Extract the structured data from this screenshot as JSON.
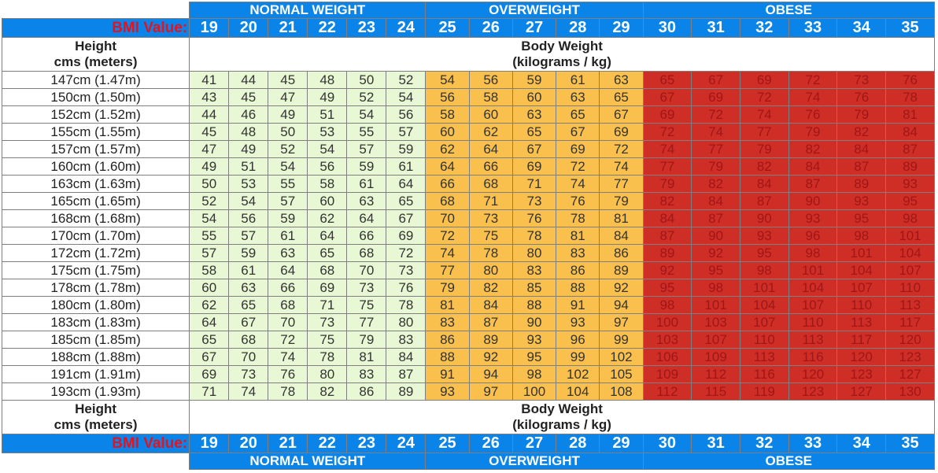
{
  "chart_data": {
    "type": "table",
    "bmi_label": "BMI Value:",
    "height_header": [
      "Height",
      "cms (meters)"
    ],
    "weight_header": [
      "Body Weight",
      "(kilograms / kg)"
    ],
    "categories": [
      {
        "name": "NORMAL WEIGHT",
        "bmi": [
          19,
          20,
          21,
          22,
          23,
          24
        ],
        "color": "#e8f8d4"
      },
      {
        "name": "OVERWEIGHT",
        "bmi": [
          25,
          26,
          27,
          28,
          29
        ],
        "color": "#f9c04e"
      },
      {
        "name": "OBESE",
        "bmi": [
          30,
          31,
          32,
          33,
          34,
          35
        ],
        "color": "#cf2e27"
      }
    ],
    "bmi_values": [
      19,
      20,
      21,
      22,
      23,
      24,
      25,
      26,
      27,
      28,
      29,
      30,
      31,
      32,
      33,
      34,
      35
    ],
    "rows": [
      {
        "height": "147cm (1.47m)",
        "weights": [
          41,
          44,
          45,
          48,
          50,
          52,
          54,
          56,
          59,
          61,
          63,
          65,
          67,
          69,
          72,
          73,
          76
        ]
      },
      {
        "height": "150cm (1.50m)",
        "weights": [
          43,
          45,
          47,
          49,
          52,
          54,
          56,
          58,
          60,
          63,
          65,
          67,
          69,
          72,
          74,
          76,
          78
        ]
      },
      {
        "height": "152cm (1.52m)",
        "weights": [
          44,
          46,
          49,
          51,
          54,
          56,
          58,
          60,
          63,
          65,
          67,
          69,
          72,
          74,
          76,
          79,
          81
        ]
      },
      {
        "height": "155cm (1.55m)",
        "weights": [
          45,
          48,
          50,
          53,
          55,
          57,
          60,
          62,
          65,
          67,
          69,
          72,
          74,
          77,
          79,
          82,
          84
        ]
      },
      {
        "height": "157cm (1.57m)",
        "weights": [
          47,
          49,
          52,
          54,
          57,
          59,
          62,
          64,
          67,
          69,
          72,
          74,
          77,
          79,
          82,
          84,
          87
        ]
      },
      {
        "height": "160cm (1.60m)",
        "weights": [
          49,
          51,
          54,
          56,
          59,
          61,
          64,
          66,
          69,
          72,
          74,
          77,
          79,
          82,
          84,
          87,
          89
        ]
      },
      {
        "height": "163cm (1.63m)",
        "weights": [
          50,
          53,
          55,
          58,
          61,
          64,
          66,
          68,
          71,
          74,
          77,
          79,
          82,
          84,
          87,
          89,
          93
        ]
      },
      {
        "height": "165cm (1.65m)",
        "weights": [
          52,
          54,
          57,
          60,
          63,
          65,
          68,
          71,
          73,
          76,
          79,
          82,
          84,
          87,
          90,
          93,
          95
        ]
      },
      {
        "height": "168cm (1.68m)",
        "weights": [
          54,
          56,
          59,
          62,
          64,
          67,
          70,
          73,
          76,
          78,
          81,
          84,
          87,
          90,
          93,
          95,
          98
        ]
      },
      {
        "height": "170cm (1.70m)",
        "weights": [
          55,
          57,
          61,
          64,
          66,
          69,
          72,
          75,
          78,
          81,
          84,
          87,
          90,
          93,
          96,
          98,
          101
        ]
      },
      {
        "height": "172cm (1.72m)",
        "weights": [
          57,
          59,
          63,
          65,
          68,
          72,
          74,
          78,
          80,
          83,
          86,
          89,
          92,
          95,
          98,
          101,
          104
        ]
      },
      {
        "height": "175cm (1.75m)",
        "weights": [
          58,
          61,
          64,
          68,
          70,
          73,
          77,
          80,
          83,
          86,
          89,
          92,
          95,
          98,
          101,
          104,
          107
        ]
      },
      {
        "height": "178cm (1.78m)",
        "weights": [
          60,
          63,
          66,
          69,
          73,
          76,
          79,
          82,
          85,
          88,
          92,
          95,
          98,
          101,
          104,
          107,
          110
        ]
      },
      {
        "height": "180cm (1.80m)",
        "weights": [
          62,
          65,
          68,
          71,
          75,
          78,
          81,
          84,
          88,
          91,
          94,
          98,
          101,
          104,
          107,
          110,
          113
        ]
      },
      {
        "height": "183cm (1.83m)",
        "weights": [
          64,
          67,
          70,
          73,
          77,
          80,
          83,
          87,
          90,
          93,
          97,
          100,
          103,
          107,
          110,
          113,
          117
        ]
      },
      {
        "height": "185cm (1.85m)",
        "weights": [
          65,
          68,
          72,
          75,
          79,
          83,
          86,
          89,
          93,
          96,
          99,
          103,
          107,
          110,
          113,
          117,
          120
        ]
      },
      {
        "height": "188cm (1.88m)",
        "weights": [
          67,
          70,
          74,
          78,
          81,
          84,
          88,
          92,
          95,
          99,
          102,
          106,
          109,
          113,
          116,
          120,
          123
        ]
      },
      {
        "height": "191cm (1.91m)",
        "weights": [
          69,
          73,
          76,
          80,
          83,
          87,
          91,
          94,
          98,
          102,
          105,
          109,
          112,
          116,
          120,
          123,
          127
        ]
      },
      {
        "height": "193cm (1.93m)",
        "weights": [
          71,
          74,
          78,
          82,
          86,
          89,
          93,
          97,
          100,
          104,
          108,
          112,
          115,
          119,
          123,
          127,
          130
        ]
      }
    ]
  }
}
